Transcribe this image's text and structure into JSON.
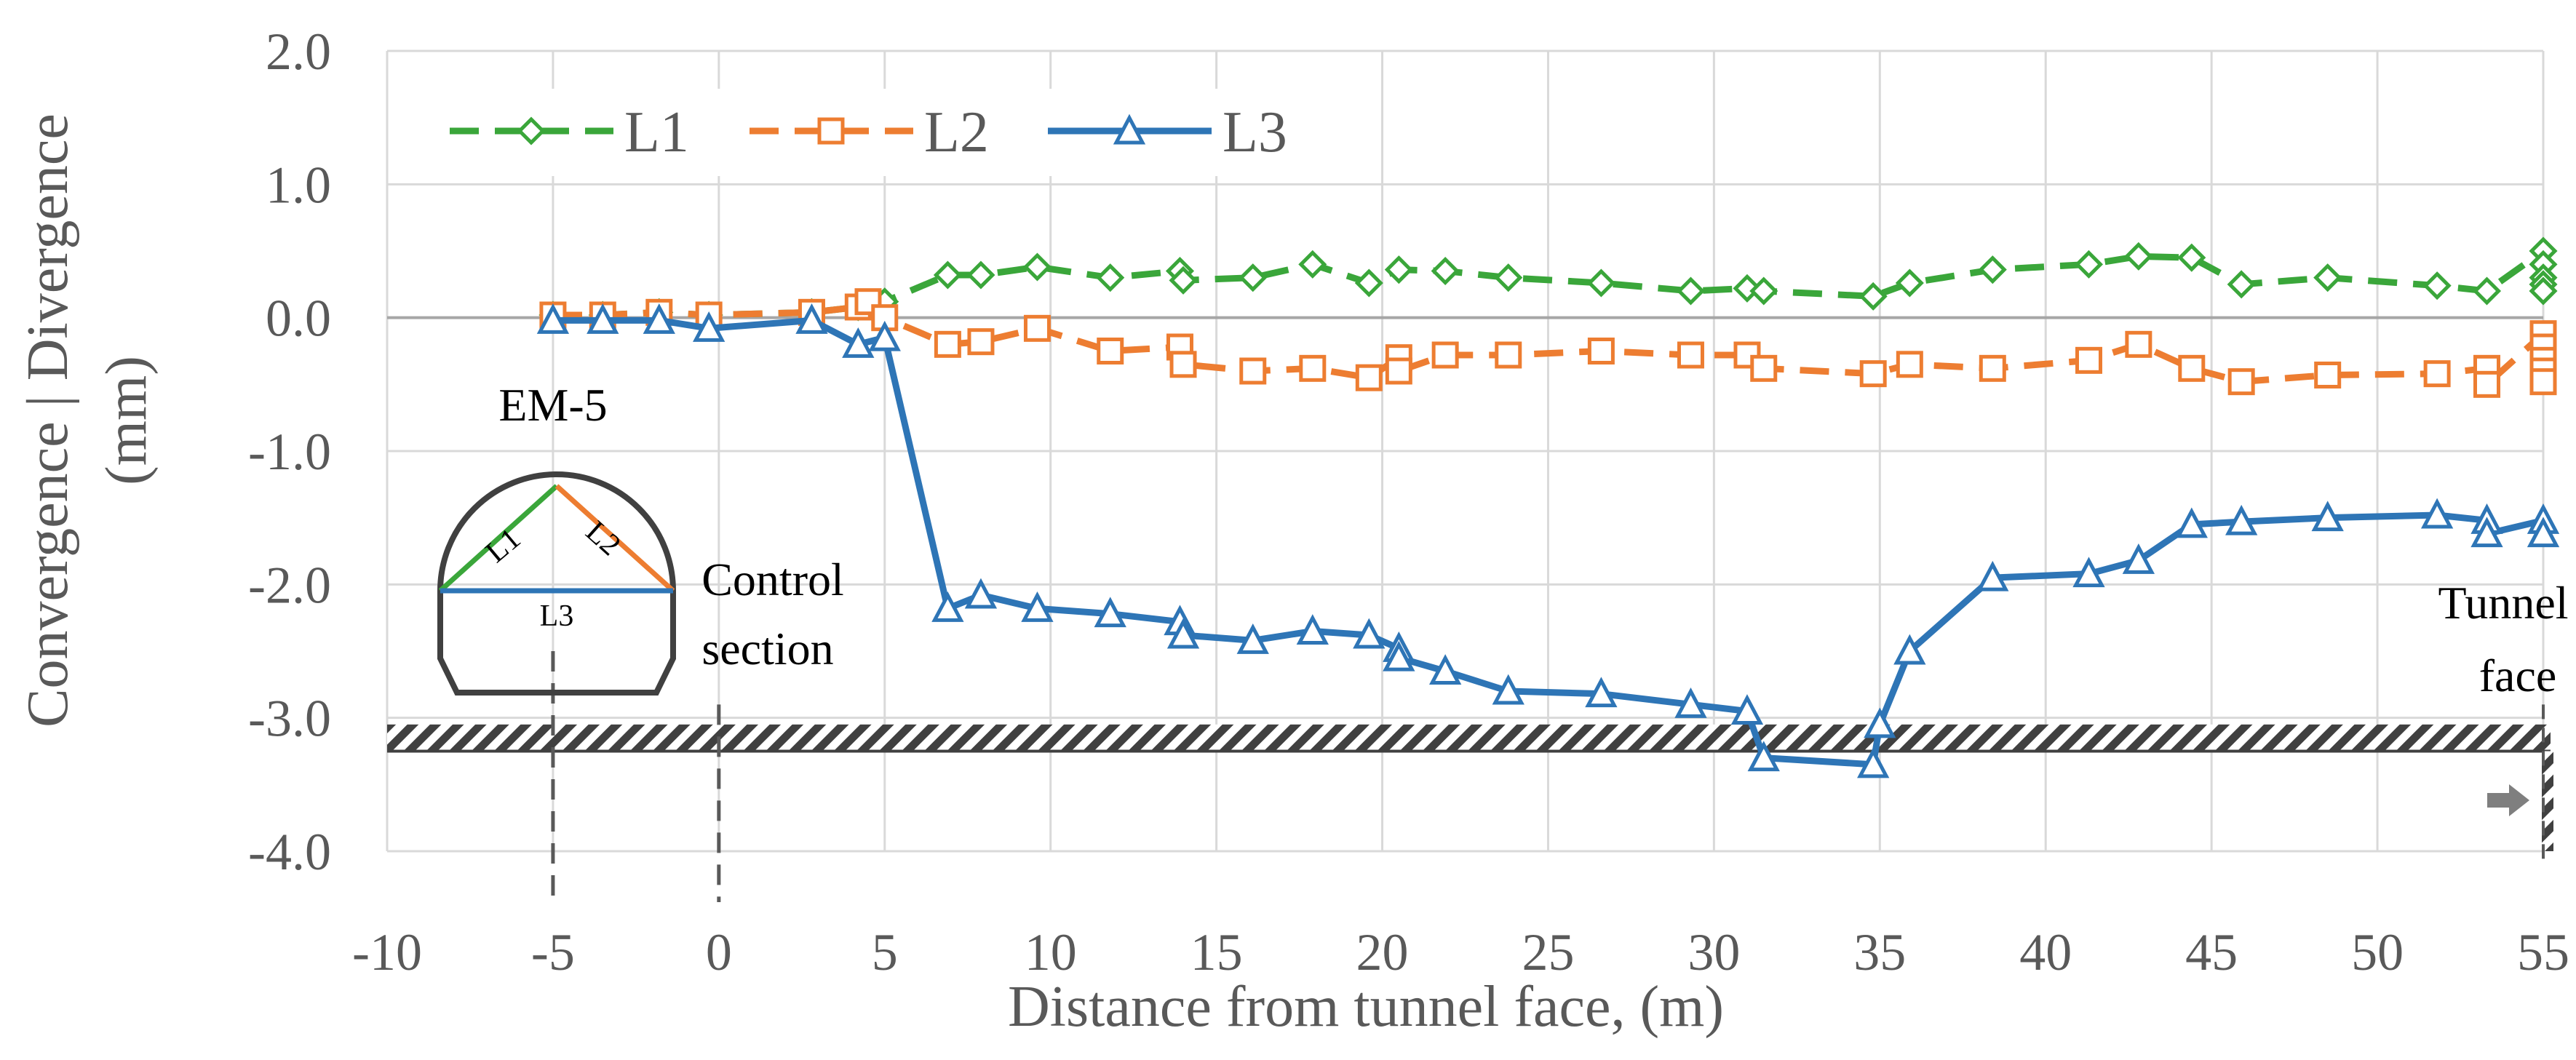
{
  "chart_data": {
    "type": "line",
    "title": "",
    "xlabel": "Distance from tunnel face, (m)",
    "ylabel_line1": "Convergence | Divergence",
    "ylabel_line2": "(mm)",
    "xlim": [
      -10,
      55
    ],
    "ylim": [
      -4.0,
      2.0
    ],
    "xticks": [
      -10,
      -5,
      0,
      5,
      10,
      15,
      20,
      25,
      30,
      35,
      40,
      45,
      50,
      55
    ],
    "xtick_labels": [
      "-10",
      "-5",
      "0",
      "5",
      "10",
      "15",
      "20",
      "25",
      "30",
      "35",
      "40",
      "45",
      "50",
      "55"
    ],
    "yticks": [
      2.0,
      1.0,
      0.0,
      -1.0,
      -2.0,
      -3.0,
      -4.0
    ],
    "ytick_labels": [
      "2.0",
      "1.0",
      "0.0",
      "-1.0",
      "-2.0",
      "-3.0",
      "-4.0"
    ],
    "grid": true,
    "legend_position": "top-left",
    "series": [
      {
        "name": "L1",
        "color": "#3aa63a",
        "marker": "diamond",
        "dash": "dashed",
        "x": [
          -5,
          -3.5,
          -1.8,
          -0.3,
          2.8,
          4.2,
          4.5,
          5.0,
          6.9,
          7.9,
          9.6,
          11.8,
          13.9,
          14.0,
          16.1,
          17.9,
          19.6,
          20.5,
          21.9,
          23.8,
          26.6,
          29.3,
          31.0,
          31.5,
          34.8,
          35.9,
          38.4,
          41.3,
          42.8,
          44.4,
          45.9,
          48.5,
          51.8,
          53.3,
          55.0,
          55.0,
          55.0,
          55.0,
          55.0
        ],
        "y": [
          0.02,
          0.02,
          0.04,
          0.02,
          0.04,
          0.08,
          0.1,
          0.12,
          0.32,
          0.32,
          0.38,
          0.3,
          0.35,
          0.28,
          0.3,
          0.4,
          0.26,
          0.36,
          0.35,
          0.3,
          0.26,
          0.2,
          0.22,
          0.2,
          0.16,
          0.26,
          0.36,
          0.4,
          0.46,
          0.45,
          0.25,
          0.3,
          0.24,
          0.2,
          0.5,
          0.4,
          0.3,
          0.25,
          0.2
        ]
      },
      {
        "name": "L2",
        "color": "#ed7d31",
        "marker": "square",
        "dash": "dashed",
        "x": [
          -5,
          -3.5,
          -1.8,
          -0.3,
          2.8,
          4.2,
          4.5,
          5.0,
          6.9,
          7.9,
          9.6,
          11.8,
          13.9,
          14.0,
          16.1,
          17.9,
          19.6,
          20.5,
          20.5,
          21.9,
          23.8,
          26.6,
          29.3,
          31.0,
          31.5,
          34.8,
          35.9,
          38.4,
          41.3,
          42.8,
          44.4,
          45.9,
          48.5,
          51.8,
          53.3,
          53.3,
          55.0,
          55.0,
          55.0,
          55.0,
          55.0
        ],
        "y": [
          0.02,
          0.02,
          0.04,
          0.02,
          0.04,
          0.08,
          0.12,
          0.0,
          -0.2,
          -0.18,
          -0.08,
          -0.25,
          -0.22,
          -0.35,
          -0.4,
          -0.38,
          -0.45,
          -0.3,
          -0.4,
          -0.28,
          -0.28,
          -0.25,
          -0.28,
          -0.28,
          -0.38,
          -0.42,
          -0.35,
          -0.38,
          -0.32,
          -0.2,
          -0.38,
          -0.48,
          -0.43,
          -0.42,
          -0.38,
          -0.5,
          -0.12,
          -0.22,
          -0.32,
          -0.4,
          -0.48
        ]
      },
      {
        "name": "L3",
        "color": "#2e75b6",
        "marker": "triangle",
        "dash": "solid",
        "x": [
          -5,
          -3.5,
          -1.8,
          -0.3,
          2.8,
          4.2,
          5.0,
          6.9,
          7.9,
          9.6,
          11.8,
          13.9,
          14.0,
          16.1,
          17.9,
          19.6,
          20.5,
          20.5,
          21.9,
          23.8,
          26.6,
          29.3,
          31.0,
          31.5,
          34.8,
          35.0,
          35.9,
          38.4,
          41.3,
          42.8,
          44.4,
          45.9,
          48.5,
          51.8,
          53.3,
          53.3,
          55.0,
          55.0
        ],
        "y": [
          -0.02,
          -0.02,
          -0.02,
          -0.08,
          -0.02,
          -0.2,
          -0.15,
          -2.18,
          -2.08,
          -2.18,
          -2.22,
          -2.28,
          -2.38,
          -2.42,
          -2.35,
          -2.38,
          -2.48,
          -2.55,
          -2.65,
          -2.8,
          -2.82,
          -2.9,
          -2.95,
          -3.3,
          -3.35,
          -3.05,
          -2.5,
          -1.95,
          -1.92,
          -1.82,
          -1.55,
          -1.53,
          -1.5,
          -1.48,
          -1.52,
          -1.62,
          -1.52,
          -1.62
        ]
      }
    ],
    "annotations": {
      "em_label": "EM-5",
      "control_section_line1": "Control",
      "control_section_line2": "section",
      "tunnel_face_line1": "Tunnel",
      "tunnel_face_line2": "face",
      "em_marker_x": -5,
      "control_section_x": 0,
      "tunnel_face_x": 55,
      "hatched_band_y": [
        -3.25,
        -3.05
      ],
      "diagram_labels": [
        "L1",
        "L2",
        "L3"
      ]
    }
  }
}
